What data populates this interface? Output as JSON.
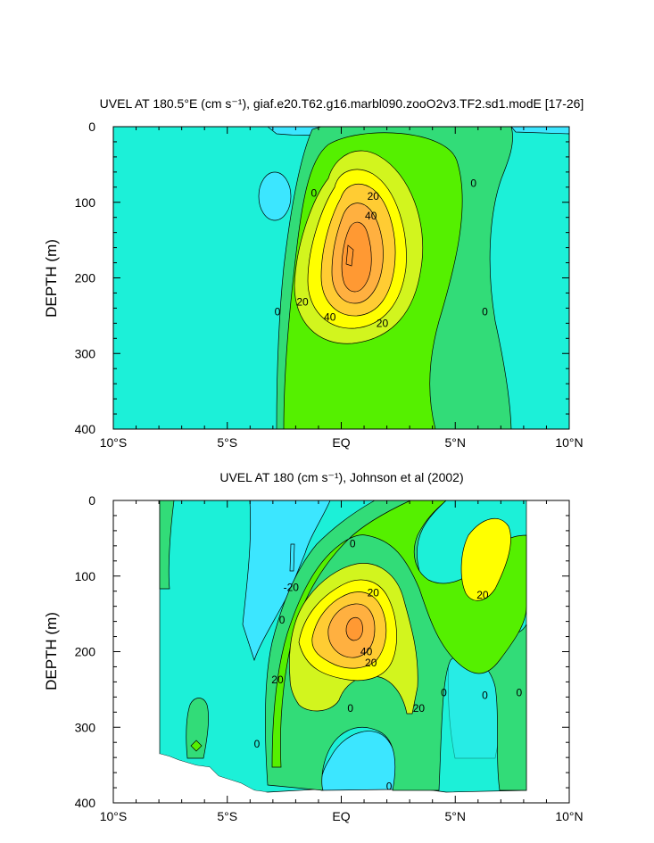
{
  "chart_data": [
    {
      "type": "contour",
      "title": "UVEL AT 180.5°E (cm s⁻¹), giaf.e20.T62.g16.marbl090.zooO2v3.TF2.sd1.modE [17-26]",
      "ylabel": "DEPTH (m)",
      "xlim": [
        -10,
        10
      ],
      "ylim": [
        0,
        400
      ],
      "y_inverted": true,
      "x_ticks": [
        -10,
        -5,
        0,
        5,
        10
      ],
      "x_tick_labels": [
        "10°S",
        "5°S",
        "EQ",
        "5°N",
        "10°N"
      ],
      "y_ticks": [
        0,
        100,
        200,
        300,
        400
      ],
      "y_tick_labels": [
        "0",
        "100",
        "200",
        "300",
        "400"
      ],
      "contour_interval": 10,
      "levels": [
        {
          "range": "< -10",
          "color": "#3ce6ff"
        },
        {
          "range": "-10 to 0",
          "color": "#1cf0d8"
        },
        {
          "range": "0 to 10",
          "color": "#32dc78"
        },
        {
          "range": "10 to 20",
          "color": "#55f000"
        },
        {
          "range": "20 to 30",
          "color": "#d2f51e"
        },
        {
          "range": "30 to 40",
          "color": "#ffff00"
        },
        {
          "range": "40 to 50",
          "color": "#ffcc33"
        },
        {
          "range": "50 to 60",
          "color": "#ffb040"
        },
        {
          "range": "> 60",
          "color": "#ff9933"
        }
      ],
      "core": {
        "lat": 0.2,
        "depth": 180,
        "max_value": 60
      },
      "contour_labels": [
        {
          "text": "0",
          "lat": -1.2,
          "depth": 88
        },
        {
          "text": "20",
          "lat": 1.4,
          "depth": 92
        },
        {
          "text": "40",
          "lat": 1.3,
          "depth": 118
        },
        {
          "text": "0",
          "lat": 5.8,
          "depth": 75
        },
        {
          "text": "20",
          "lat": -1.7,
          "depth": 232
        },
        {
          "text": "40",
          "lat": -0.5,
          "depth": 252
        },
        {
          "text": "20",
          "lat": 1.8,
          "depth": 260
        },
        {
          "text": "0",
          "lat": -2.8,
          "depth": 245
        },
        {
          "text": "0",
          "lat": 6.3,
          "depth": 245
        }
      ]
    },
    {
      "type": "contour",
      "title": "UVEL AT 180 (cm s⁻¹), Johnson et al (2002)",
      "ylabel": "DEPTH (m)",
      "xlim": [
        -10,
        10
      ],
      "ylim": [
        0,
        400
      ],
      "y_inverted": true,
      "x_ticks": [
        -10,
        -5,
        0,
        5,
        10
      ],
      "x_tick_labels": [
        "10°S",
        "5°S",
        "EQ",
        "5°N",
        "10°N"
      ],
      "y_ticks": [
        0,
        100,
        200,
        300,
        400
      ],
      "y_tick_labels": [
        "0",
        "100",
        "200",
        "300",
        "400"
      ],
      "data_lat_range": [
        -8,
        8
      ],
      "data_depth_range": [
        5,
        385
      ],
      "core": {
        "lat": 0.3,
        "depth": 170,
        "max_value": 60
      },
      "contour_labels": [
        {
          "text": "0",
          "lat": 0.5,
          "depth": 57
        },
        {
          "text": "-20",
          "lat": -2.2,
          "depth": 115
        },
        {
          "text": "20",
          "lat": 1.4,
          "depth": 122
        },
        {
          "text": "20",
          "lat": 6.2,
          "depth": 125
        },
        {
          "text": "0",
          "lat": -2.6,
          "depth": 158
        },
        {
          "text": "20",
          "lat": -2.8,
          "depth": 237
        },
        {
          "text": "40",
          "lat": 1.1,
          "depth": 200
        },
        {
          "text": "20",
          "lat": 1.3,
          "depth": 215
        },
        {
          "text": "0",
          "lat": 0.4,
          "depth": 275
        },
        {
          "text": "20",
          "lat": 3.4,
          "depth": 275
        },
        {
          "text": "0",
          "lat": 4.5,
          "depth": 254
        },
        {
          "text": "0",
          "lat": 6.3,
          "depth": 258
        },
        {
          "text": "0",
          "lat": 7.8,
          "depth": 254
        },
        {
          "text": "0",
          "lat": -3.7,
          "depth": 322
        },
        {
          "text": "0",
          "lat": 2.1,
          "depth": 378
        }
      ]
    }
  ]
}
